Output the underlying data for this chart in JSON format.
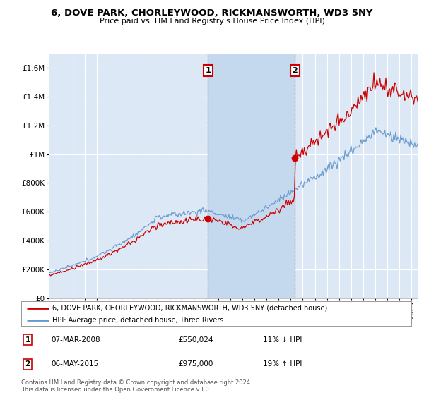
{
  "title": "6, DOVE PARK, CHORLEYWOOD, RICKMANSWORTH, WD3 5NY",
  "subtitle": "Price paid vs. HM Land Registry's House Price Index (HPI)",
  "legend_label_red": "6, DOVE PARK, CHORLEYWOOD, RICKMANSWORTH, WD3 5NY (detached house)",
  "legend_label_blue": "HPI: Average price, detached house, Three Rivers",
  "transaction1_date": "07-MAR-2008",
  "transaction1_price": "£550,024",
  "transaction1_hpi": "11% ↓ HPI",
  "transaction1_year": 2008.17,
  "transaction1_value": 550024,
  "transaction2_date": "06-MAY-2015",
  "transaction2_price": "£975,000",
  "transaction2_hpi": "19% ↑ HPI",
  "transaction2_year": 2015.35,
  "transaction2_value": 975000,
  "ylim": [
    0,
    1700000
  ],
  "xlim_start": 1995,
  "xlim_end": 2025.5,
  "background_color": "#ffffff",
  "plot_bg_color": "#dce8f5",
  "grid_color": "#ffffff",
  "shade_color": "#c5d9ee",
  "red_color": "#cc0000",
  "blue_color": "#6699cc",
  "vline_color": "#cc0000",
  "footnote": "Contains HM Land Registry data © Crown copyright and database right 2024.\nThis data is licensed under the Open Government Licence v3.0."
}
